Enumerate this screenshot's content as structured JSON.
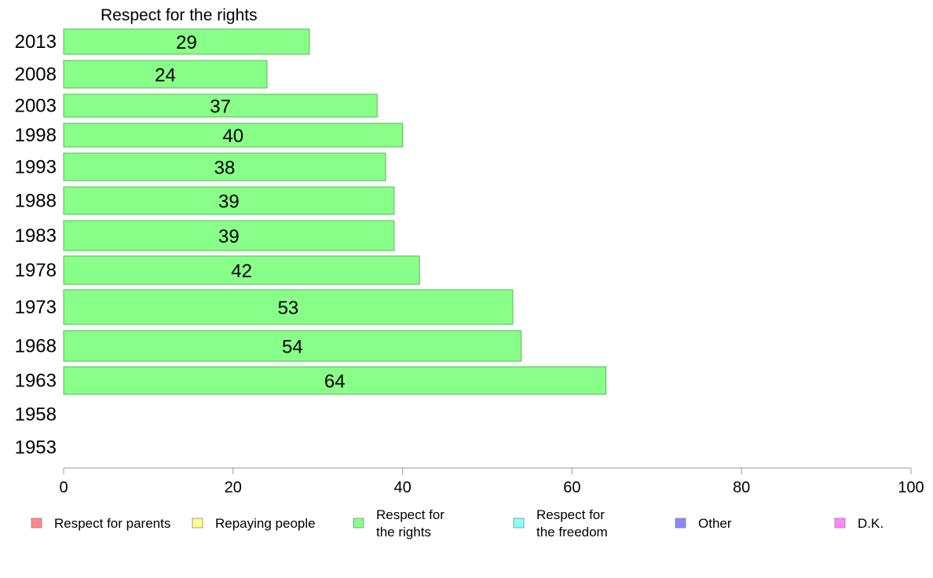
{
  "chart_data": {
    "type": "bar",
    "orientation": "horizontal",
    "title": "Respect for the rights",
    "categories": [
      "2013",
      "2008",
      "2003",
      "1998",
      "1993",
      "1988",
      "1983",
      "1978",
      "1973",
      "1968",
      "1963",
      "1958",
      "1953"
    ],
    "values": [
      29,
      24,
      37,
      40,
      38,
      39,
      39,
      42,
      53,
      54,
      64,
      null,
      null
    ],
    "data_labels": [
      "29",
      "24",
      "37",
      "40",
      "38",
      "39",
      "39",
      "42",
      "53",
      "54",
      "64",
      "",
      ""
    ],
    "bar_color": "#88ff88",
    "bar_stroke": "#55bb55",
    "xlim": [
      0,
      100
    ],
    "xticks": [
      0,
      20,
      40,
      60,
      80,
      100
    ],
    "xlabel": "",
    "ylabel": "",
    "grid": false,
    "legend_position": "bottom",
    "legend": [
      {
        "lines": [
          "Respect for parents"
        ],
        "color": "#ff8888"
      },
      {
        "lines": [
          "Repaying people"
        ],
        "color": "#ffff88"
      },
      {
        "lines": [
          "Respect for",
          "the rights"
        ],
        "color": "#88ff88"
      },
      {
        "lines": [
          "Respect for",
          "the freedom"
        ],
        "color": "#88ffff"
      },
      {
        "lines": [
          "Other"
        ],
        "color": "#8888ff"
      },
      {
        "lines": [
          "D.K."
        ],
        "color": "#ff88ff"
      }
    ]
  }
}
